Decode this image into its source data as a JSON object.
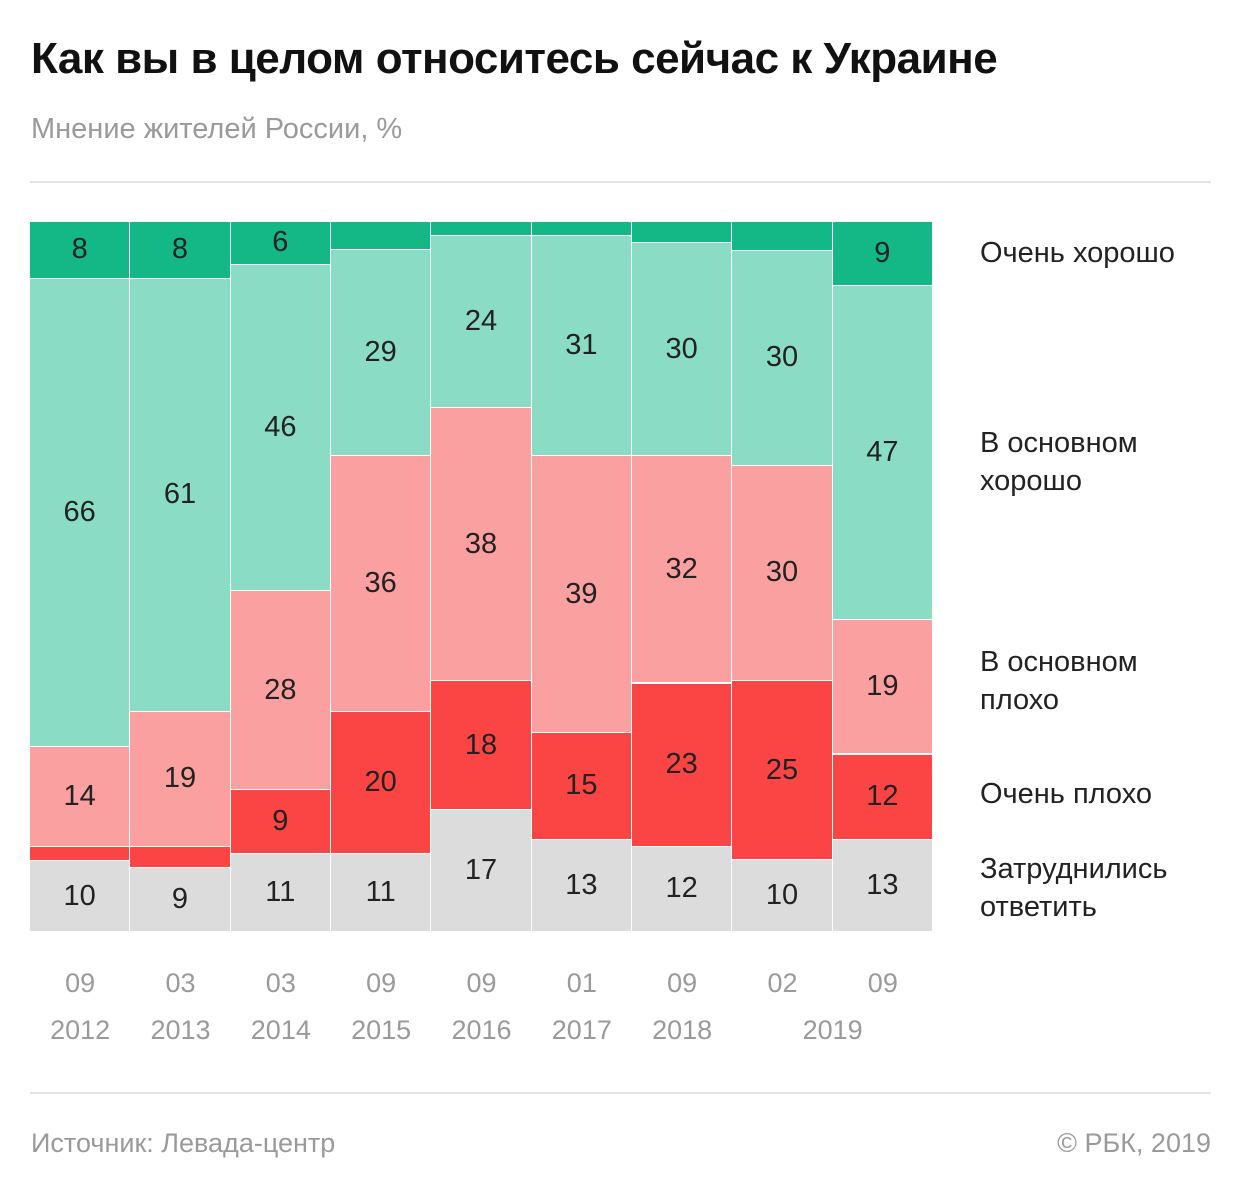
{
  "title": "Как вы в целом относитесь сейчас к Украине",
  "subtitle": "Мнение жителей России, %",
  "footer": {
    "source": "Источник: Левада-центр",
    "copyright": "© РБК, 2019"
  },
  "chart_data": {
    "type": "bar",
    "stacked": true,
    "categories": [
      {
        "month": "09",
        "year": "2012"
      },
      {
        "month": "03",
        "year": "2013"
      },
      {
        "month": "03",
        "year": "2014"
      },
      {
        "month": "09",
        "year": "2015"
      },
      {
        "month": "09",
        "year": "2016"
      },
      {
        "month": "01",
        "year": "2017"
      },
      {
        "month": "09",
        "year": "2018"
      },
      {
        "month": "02",
        "year": "2019"
      },
      {
        "month": "09",
        "year": "2019"
      }
    ],
    "series": [
      {
        "name": "Очень хорошо",
        "color": "#13b886",
        "values": [
          8,
          8,
          6,
          4,
          2,
          2,
          3,
          4,
          9
        ],
        "labels": [
          "8",
          "8",
          "6",
          "",
          "",
          "",
          "",
          "",
          "9"
        ]
      },
      {
        "name": "В основном хорошо",
        "color": "#8adcc4",
        "values": [
          66,
          61,
          46,
          29,
          24,
          31,
          30,
          30,
          47
        ],
        "labels": [
          "66",
          "61",
          "46",
          "29",
          "24",
          "31",
          "30",
          "30",
          "47"
        ]
      },
      {
        "name": "В основном плохо",
        "color": "#fba0a0",
        "values": [
          14,
          19,
          28,
          36,
          38,
          39,
          32,
          30,
          19
        ],
        "labels": [
          "14",
          "19",
          "28",
          "36",
          "38",
          "39",
          "32",
          "30",
          "19"
        ]
      },
      {
        "name": "Очень плохо",
        "color": "#fb4444",
        "values": [
          2,
          3,
          9,
          20,
          18,
          15,
          23,
          25,
          12
        ],
        "labels": [
          "",
          "",
          "9",
          "20",
          "18",
          "15",
          "23",
          "25",
          "12"
        ]
      },
      {
        "name": "Затруднились ответить",
        "color": "#dcdcdc",
        "values": [
          10,
          9,
          11,
          11,
          17,
          13,
          12,
          10,
          13
        ],
        "labels": [
          "10",
          "9",
          "11",
          "11",
          "17",
          "13",
          "12",
          "10",
          "13"
        ]
      }
    ],
    "legend_lines": [
      [
        "Очень хорошо"
      ],
      [
        "В основном",
        "хорошо"
      ],
      [
        "В основном",
        "плохо"
      ],
      [
        "Очень плохо"
      ],
      [
        "Затруднились",
        "ответить"
      ]
    ],
    "legend_placement": "right",
    "ylim": [
      0,
      100
    ],
    "grid": false
  }
}
